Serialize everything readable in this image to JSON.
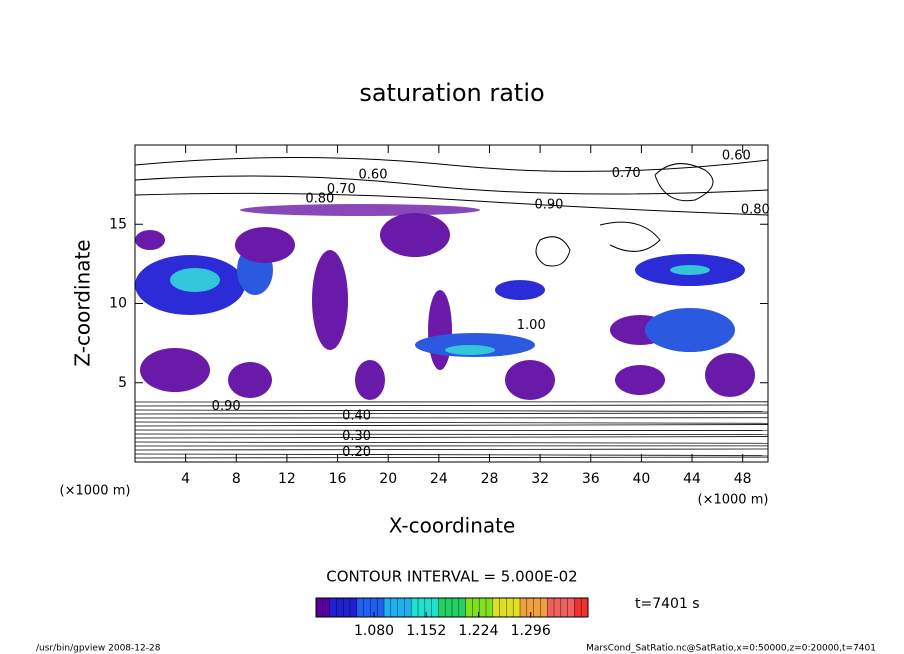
{
  "chart_data": {
    "type": "contour",
    "title": "saturation ratio",
    "x_label": "X-coordinate",
    "y_label": "Z-coordinate",
    "x_unit": "(×1000 m)",
    "y_unit": "(×1000 m)",
    "xlim": [
      0,
      50
    ],
    "xticks": [
      4,
      8,
      12,
      16,
      20,
      24,
      28,
      32,
      36,
      40,
      44,
      48
    ],
    "ylim": [
      0,
      20
    ],
    "yticks": [
      5,
      10,
      15
    ],
    "contour_interval": "CONTOUR INTERVAL = 5.000E-02",
    "time_label": "t=7401 s",
    "colorbar": {
      "clim": [
        1.0,
        1.375
      ],
      "ticks": [
        {
          "value": 1.08,
          "label": "1.080"
        },
        1.152,
        1.224,
        1.296
      ]
    },
    "contour_labels": [
      {
        "text": "0.60",
        "x": 18.8,
        "y": 18.1
      },
      {
        "text": "0.60",
        "x": 47.5,
        "y": 19.3
      },
      {
        "text": "0.70",
        "x": 16.3,
        "y": 17.2
      },
      {
        "text": "0.80",
        "x": 14.6,
        "y": 16.6
      },
      {
        "text": "0.70",
        "x": 38.8,
        "y": 18.2
      },
      {
        "text": "0.90",
        "x": 32.7,
        "y": 16.2
      },
      {
        "text": "0.80",
        "x": 49.0,
        "y": 15.9
      },
      {
        "text": "1.00",
        "x": 31.3,
        "y": 8.6
      },
      {
        "text": "0.90",
        "x": 7.2,
        "y": 3.5
      },
      {
        "text": "0.40",
        "x": 17.5,
        "y": 2.9
      },
      {
        "text": "0.30",
        "x": 17.5,
        "y": 1.6
      },
      {
        "text": "0.20",
        "x": 17.5,
        "y": 0.6
      }
    ],
    "footer_left": "/usr/bin/gpview  2008-12-28",
    "footer_right": "MarsCond_SatRatio.nc@SatRatio,x=0:50000,z=0:20000,t=7401"
  }
}
